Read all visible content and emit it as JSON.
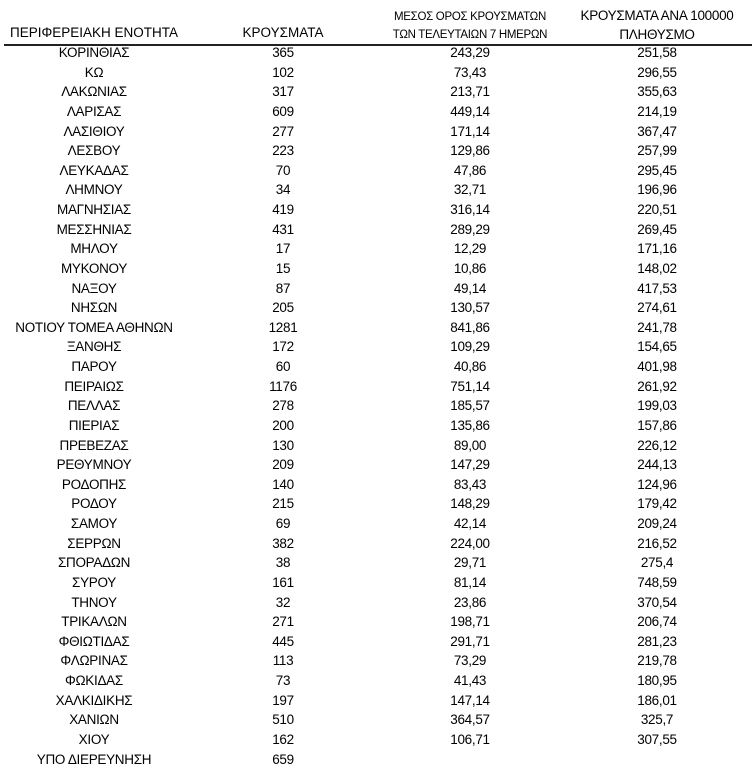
{
  "header": {
    "region": "ΠΕΡΙΦΕΡΕΙΑΚΗ ΕΝΟΤΗΤΑ",
    "cases": "ΚΡΟΥΣΜΑΤΑ",
    "avg_line1": "ΜΕΣΟΣ ΟΡΟΣ ΚΡΟΥΣΜΑΤΩΝ",
    "avg_line2": "ΤΩΝ ΤΕΛΕΥΤΑΙΩΝ 7 ΗΜΕΡΩΝ",
    "per100k_line1": "ΚΡΟΥΣΜΑΤΑ ΑΝΑ 100000",
    "per100k_line2": "ΠΛΗΘΥΣΜΟ"
  },
  "rows": [
    {
      "region": "ΚΟΡΙΝΘΙΑΣ",
      "cases": "365",
      "avg7": "243,29",
      "per100k": "251,58"
    },
    {
      "region": "ΚΩ",
      "cases": "102",
      "avg7": "73,43",
      "per100k": "296,55"
    },
    {
      "region": "ΛΑΚΩΝΙΑΣ",
      "cases": "317",
      "avg7": "213,71",
      "per100k": "355,63"
    },
    {
      "region": "ΛΑΡΙΣΑΣ",
      "cases": "609",
      "avg7": "449,14",
      "per100k": "214,19"
    },
    {
      "region": "ΛΑΣΙΘΙΟΥ",
      "cases": "277",
      "avg7": "171,14",
      "per100k": "367,47"
    },
    {
      "region": "ΛΕΣΒΟΥ",
      "cases": "223",
      "avg7": "129,86",
      "per100k": "257,99"
    },
    {
      "region": "ΛΕΥΚΑΔΑΣ",
      "cases": "70",
      "avg7": "47,86",
      "per100k": "295,45"
    },
    {
      "region": "ΛΗΜΝΟΥ",
      "cases": "34",
      "avg7": "32,71",
      "per100k": "196,96"
    },
    {
      "region": "ΜΑΓΝΗΣΙΑΣ",
      "cases": "419",
      "avg7": "316,14",
      "per100k": "220,51"
    },
    {
      "region": "ΜΕΣΣΗΝΙΑΣ",
      "cases": "431",
      "avg7": "289,29",
      "per100k": "269,45"
    },
    {
      "region": "ΜΗΛΟΥ",
      "cases": "17",
      "avg7": "12,29",
      "per100k": "171,16"
    },
    {
      "region": "ΜΥΚΟΝΟΥ",
      "cases": "15",
      "avg7": "10,86",
      "per100k": "148,02"
    },
    {
      "region": "ΝΑΞΟΥ",
      "cases": "87",
      "avg7": "49,14",
      "per100k": "417,53"
    },
    {
      "region": "ΝΗΣΩΝ",
      "cases": "205",
      "avg7": "130,57",
      "per100k": "274,61"
    },
    {
      "region": "ΝΟΤΙΟΥ ΤΟΜΕΑ ΑΘΗΝΩΝ",
      "cases": "1281",
      "avg7": "841,86",
      "per100k": "241,78"
    },
    {
      "region": "ΞΑΝΘΗΣ",
      "cases": "172",
      "avg7": "109,29",
      "per100k": "154,65"
    },
    {
      "region": "ΠΑΡΟΥ",
      "cases": "60",
      "avg7": "40,86",
      "per100k": "401,98"
    },
    {
      "region": "ΠΕΙΡΑΙΩΣ",
      "cases": "1176",
      "avg7": "751,14",
      "per100k": "261,92"
    },
    {
      "region": "ΠΕΛΛΑΣ",
      "cases": "278",
      "avg7": "185,57",
      "per100k": "199,03"
    },
    {
      "region": "ΠΙΕΡΙΑΣ",
      "cases": "200",
      "avg7": "135,86",
      "per100k": "157,86"
    },
    {
      "region": "ΠΡΕΒΕΖΑΣ",
      "cases": "130",
      "avg7": "89,00",
      "per100k": "226,12"
    },
    {
      "region": "ΡΕΘΥΜΝΟΥ",
      "cases": "209",
      "avg7": "147,29",
      "per100k": "244,13"
    },
    {
      "region": "ΡΟΔΟΠΗΣ",
      "cases": "140",
      "avg7": "83,43",
      "per100k": "124,96"
    },
    {
      "region": "ΡΟΔΟΥ",
      "cases": "215",
      "avg7": "148,29",
      "per100k": "179,42"
    },
    {
      "region": "ΣΑΜΟΥ",
      "cases": "69",
      "avg7": "42,14",
      "per100k": "209,24"
    },
    {
      "region": "ΣΕΡΡΩΝ",
      "cases": "382",
      "avg7": "224,00",
      "per100k": "216,52"
    },
    {
      "region": "ΣΠΟΡΑΔΩΝ",
      "cases": "38",
      "avg7": "29,71",
      "per100k": "275,4"
    },
    {
      "region": "ΣΥΡΟΥ",
      "cases": "161",
      "avg7": "81,14",
      "per100k": "748,59"
    },
    {
      "region": "ΤΗΝΟΥ",
      "cases": "32",
      "avg7": "23,86",
      "per100k": "370,54"
    },
    {
      "region": "ΤΡΙΚΑΛΩΝ",
      "cases": "271",
      "avg7": "198,71",
      "per100k": "206,74"
    },
    {
      "region": "ΦΘΙΩΤΙΔΑΣ",
      "cases": "445",
      "avg7": "291,71",
      "per100k": "281,23"
    },
    {
      "region": "ΦΛΩΡΙΝΑΣ",
      "cases": "113",
      "avg7": "73,29",
      "per100k": "219,78"
    },
    {
      "region": "ΦΩΚΙΔΑΣ",
      "cases": "73",
      "avg7": "41,43",
      "per100k": "180,95"
    },
    {
      "region": "ΧΑΛΚΙΔΙΚΗΣ",
      "cases": "197",
      "avg7": "147,14",
      "per100k": "186,01"
    },
    {
      "region": "ΧΑΝΙΩΝ",
      "cases": "510",
      "avg7": "364,57",
      "per100k": "325,7"
    },
    {
      "region": "ΧΙΟΥ",
      "cases": "162",
      "avg7": "106,71",
      "per100k": "307,55"
    },
    {
      "region": "ΥΠΟ ΔΙΕΡΕΥΝΗΣΗ",
      "cases": "659",
      "avg7": "",
      "per100k": ""
    }
  ]
}
